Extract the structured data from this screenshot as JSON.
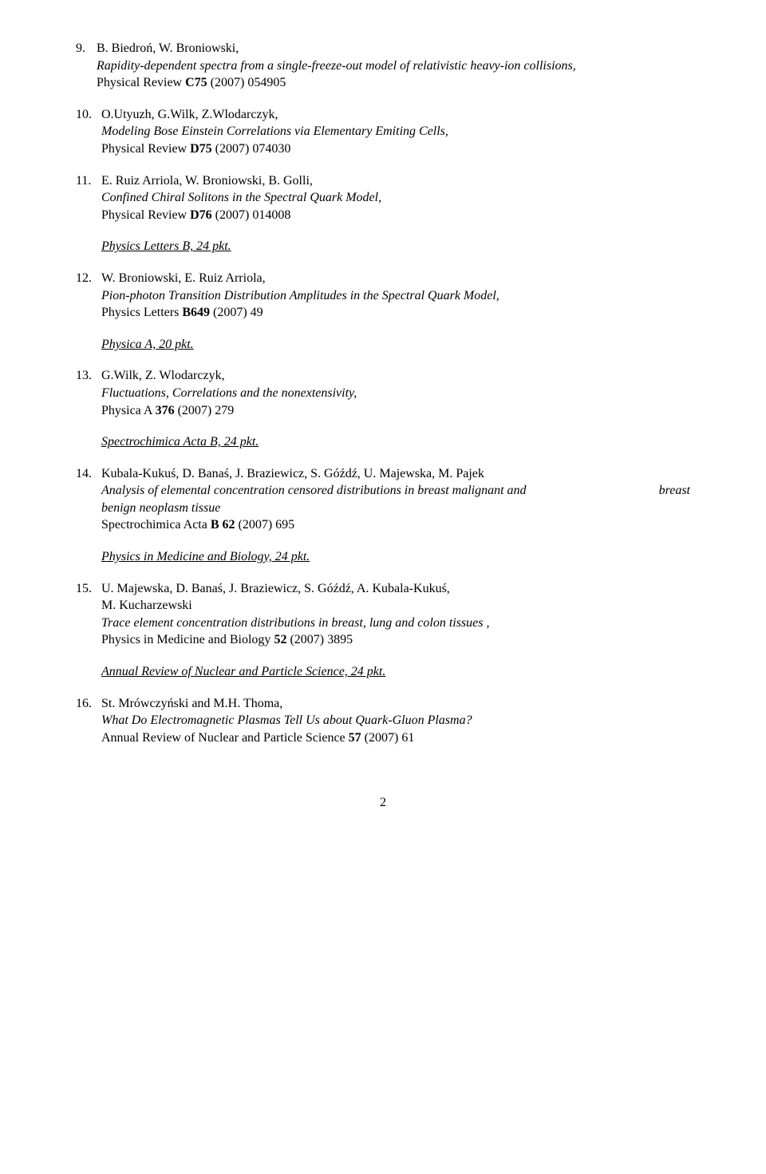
{
  "refs": [
    {
      "num": "9.",
      "authors": " B. Biedroń, W. Broniowski,",
      "title": "Rapidity-dependent spectra from a single-freeze-out model of relativistic heavy-ion collisions",
      "trailing_comma": ",",
      "pub_prefix": "Physical Review ",
      "pub_bold": "C75",
      "pub_suffix": " (2007) 054905"
    },
    {
      "num": "10.",
      "authors": " O.Utyuzh, G.Wilk, Z.Wlodarczyk,",
      "title": "Modeling Bose Einstein Correlations via Elementary Emiting Cells,",
      "pub_prefix": "Physical Review ",
      "pub_bold": "D75",
      "pub_suffix": " (2007) 074030"
    },
    {
      "num": "11.",
      "authors": " E. Ruiz Arriola, W. Broniowski, B. Golli,",
      "title": "Confined Chiral Solitons in the Spectral Quark Model,",
      "pub_prefix": "Physical Review ",
      "pub_bold": "D76",
      "pub_suffix": " (2007) 014008"
    }
  ],
  "section1": "Physics Letters B, 24 pkt.",
  "ref12": {
    "num": "12.",
    "authors": " W. Broniowski, E. Ruiz Arriola,",
    "title": "Pion-photon Transition Distribution Amplitudes in the Spectral Quark Model,",
    "pub_prefix": "Physics  Letters ",
    "pub_bold": "B649",
    "pub_suffix": " (2007) 49"
  },
  "section2": "Physica A,  20 pkt.",
  "ref13": {
    "num": "13.",
    "authors": " G.Wilk, Z. Wlodarczyk,",
    "title": "Fluctuations, Correlations and the nonextensivity,",
    "pub_prefix": "Physica A ",
    "pub_bold": "376",
    "pub_suffix": " (2007) 279"
  },
  "section3": "Spectrochimica Acta B,  24 pkt.",
  "ref14": {
    "num": "14.",
    "authors": " Kubala-Kukuś, D. Banaś, J. Braziewicz, S. Góźdź, U. Majewska, M. Pajek",
    "title_line": " Analysis of elemental concentration censored distributions in breast malignant and",
    "title_right": "breast",
    "title_line2": "benign neoplasm  tissue",
    "pub_prefix": "Spectrochimica Acta ",
    "pub_bold": "B 62",
    "pub_suffix": " (2007) 695"
  },
  "section4": "Physics in Medicine and Biology, 24 pkt.",
  "ref15": {
    "num": "15.",
    "authors": "  U. Majewska, D. Banaś, J. Braziewicz, S. Góźdź, A. Kubala-Kukuś,",
    "authors2": "M. Kucharzewski",
    "title": "Trace element concentration distributions in breast, lung and colon tissues ,",
    "pub_prefix": "Physics in Medicine and Biology ",
    "pub_bold": "52",
    "pub_suffix": " (2007) 3895"
  },
  "section5": "Annual Review of Nuclear and Particle Science, 24 pkt.",
  "ref16": {
    "num": "16.",
    "authors": " St. Mrówczyński and M.H. Thoma,",
    "title": "What Do Electromagnetic Plasmas Tell Us about Quark-Gluon Plasma?",
    "pub_prefix": " Annual Review of Nuclear and Particle Science ",
    "pub_bold": "57",
    "pub_suffix": " (2007) 61"
  },
  "page_num": "2"
}
